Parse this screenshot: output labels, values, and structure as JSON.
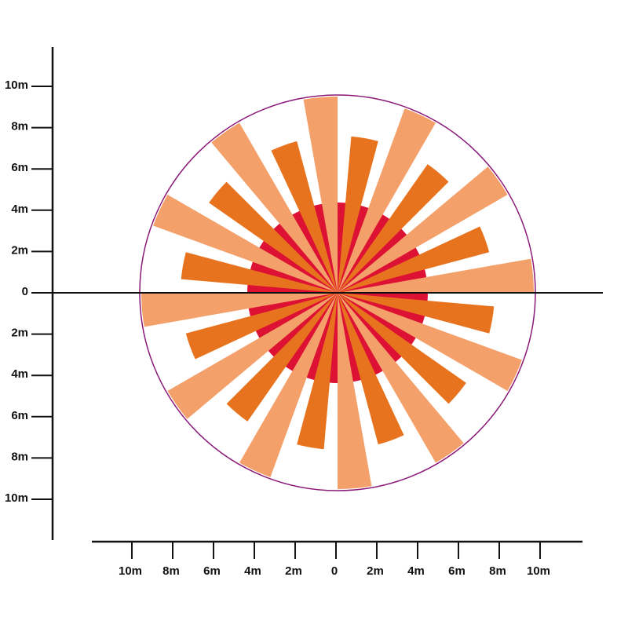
{
  "y_axis": {
    "labels": [
      "10m",
      "8m",
      "6m",
      "4m",
      "2m",
      "0",
      "2m",
      "4m",
      "6m",
      "8m",
      "10m"
    ]
  },
  "x_axis": {
    "labels": [
      "10m",
      "8m",
      "6m",
      "4m",
      "2m",
      "0",
      "2m",
      "4m",
      "6m",
      "8m",
      "10m"
    ]
  }
}
